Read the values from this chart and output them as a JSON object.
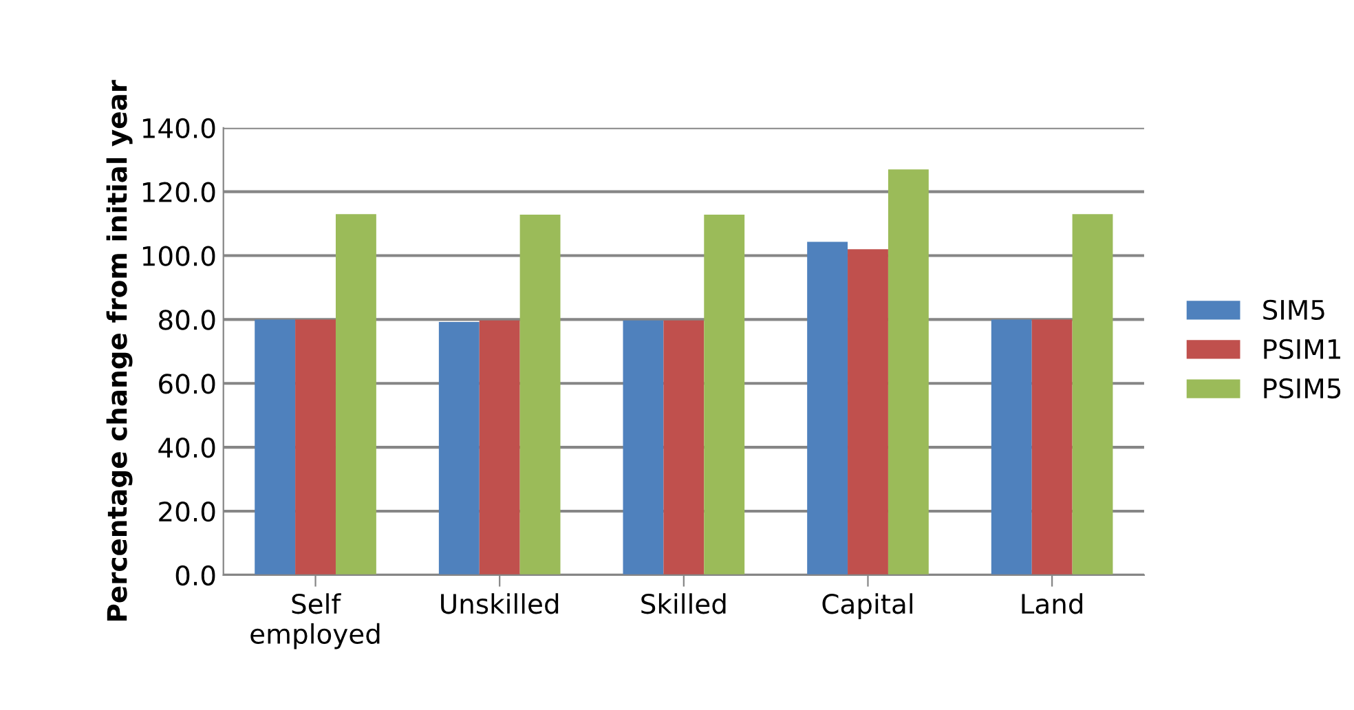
{
  "chart_data": {
    "type": "bar",
    "ylabel": "Percentage change from initial year",
    "categories": [
      "Self\nemployed",
      "Unskilled",
      "Skilled",
      "Capital",
      "Land"
    ],
    "series": [
      {
        "name": "SIM5",
        "color": "#4f81bd",
        "values": [
          80.0,
          79.2,
          79.7,
          104.3,
          80.0
        ]
      },
      {
        "name": "PSIM1",
        "color": "#c0504d",
        "values": [
          80.0,
          79.7,
          79.7,
          102.0,
          80.0
        ]
      },
      {
        "name": "PSIM5",
        "color": "#9bbb59",
        "values": [
          113.0,
          112.8,
          112.8,
          127.0,
          113.0
        ]
      }
    ],
    "ylim": [
      0,
      140
    ],
    "yticks": [
      {
        "value": 0,
        "label": "0.0"
      },
      {
        "value": 20,
        "label": "20.0"
      },
      {
        "value": 40,
        "label": "40.0"
      },
      {
        "value": 60,
        "label": "60.0"
      },
      {
        "value": 80,
        "label": "80.0"
      },
      {
        "value": 100,
        "label": "100.0"
      },
      {
        "value": 120,
        "label": "120.0"
      },
      {
        "value": 140,
        "label": "140.0"
      }
    ],
    "grid": "y",
    "legend": "right"
  }
}
